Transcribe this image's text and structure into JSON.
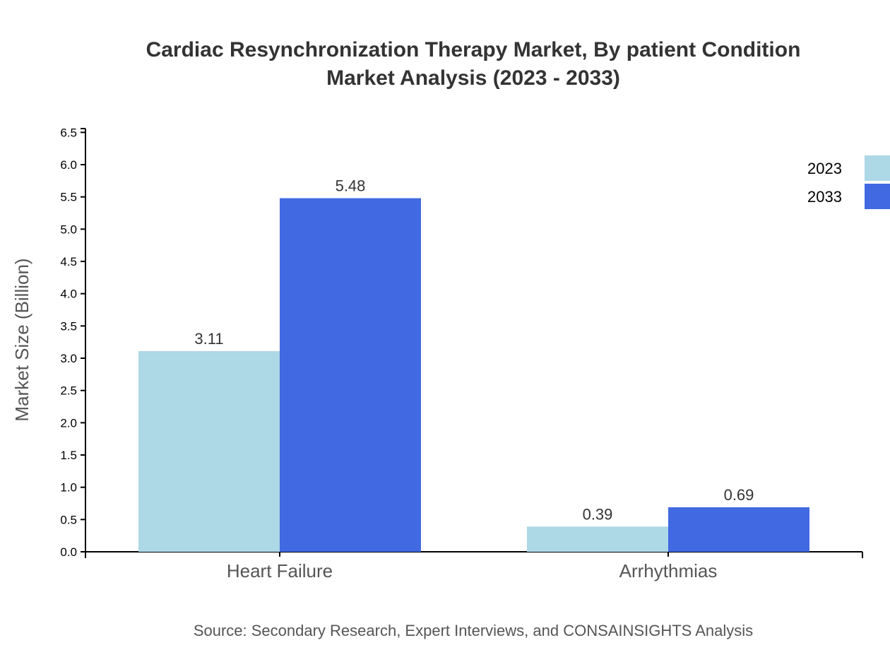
{
  "chart_data": {
    "type": "bar",
    "title_lines": [
      "Cardiac Resynchronization Therapy Market, By patient Condition",
      "Market Analysis (2023 - 2033)"
    ],
    "xlabel": "",
    "ylabel": "Market Size (Billion)",
    "categories": [
      "Heart Failure",
      "Arrhythmias"
    ],
    "series": [
      {
        "name": "2023",
        "color": "#add8e6",
        "values": [
          3.11,
          0.39
        ]
      },
      {
        "name": "2033",
        "color": "#4169e1",
        "values": [
          5.48,
          0.69
        ]
      }
    ],
    "ylim": [
      0,
      6.5
    ],
    "yticks": [
      "0.0",
      "0.5",
      "1.0",
      "1.5",
      "2.0",
      "2.5",
      "3.0",
      "3.5",
      "4.0",
      "4.5",
      "5.0",
      "5.5",
      "6.0",
      "6.5"
    ],
    "grid": false,
    "legend_position": "top-right",
    "source": "Source: Secondary Research, Expert Interviews, and CONSAINSIGHTS Analysis"
  }
}
